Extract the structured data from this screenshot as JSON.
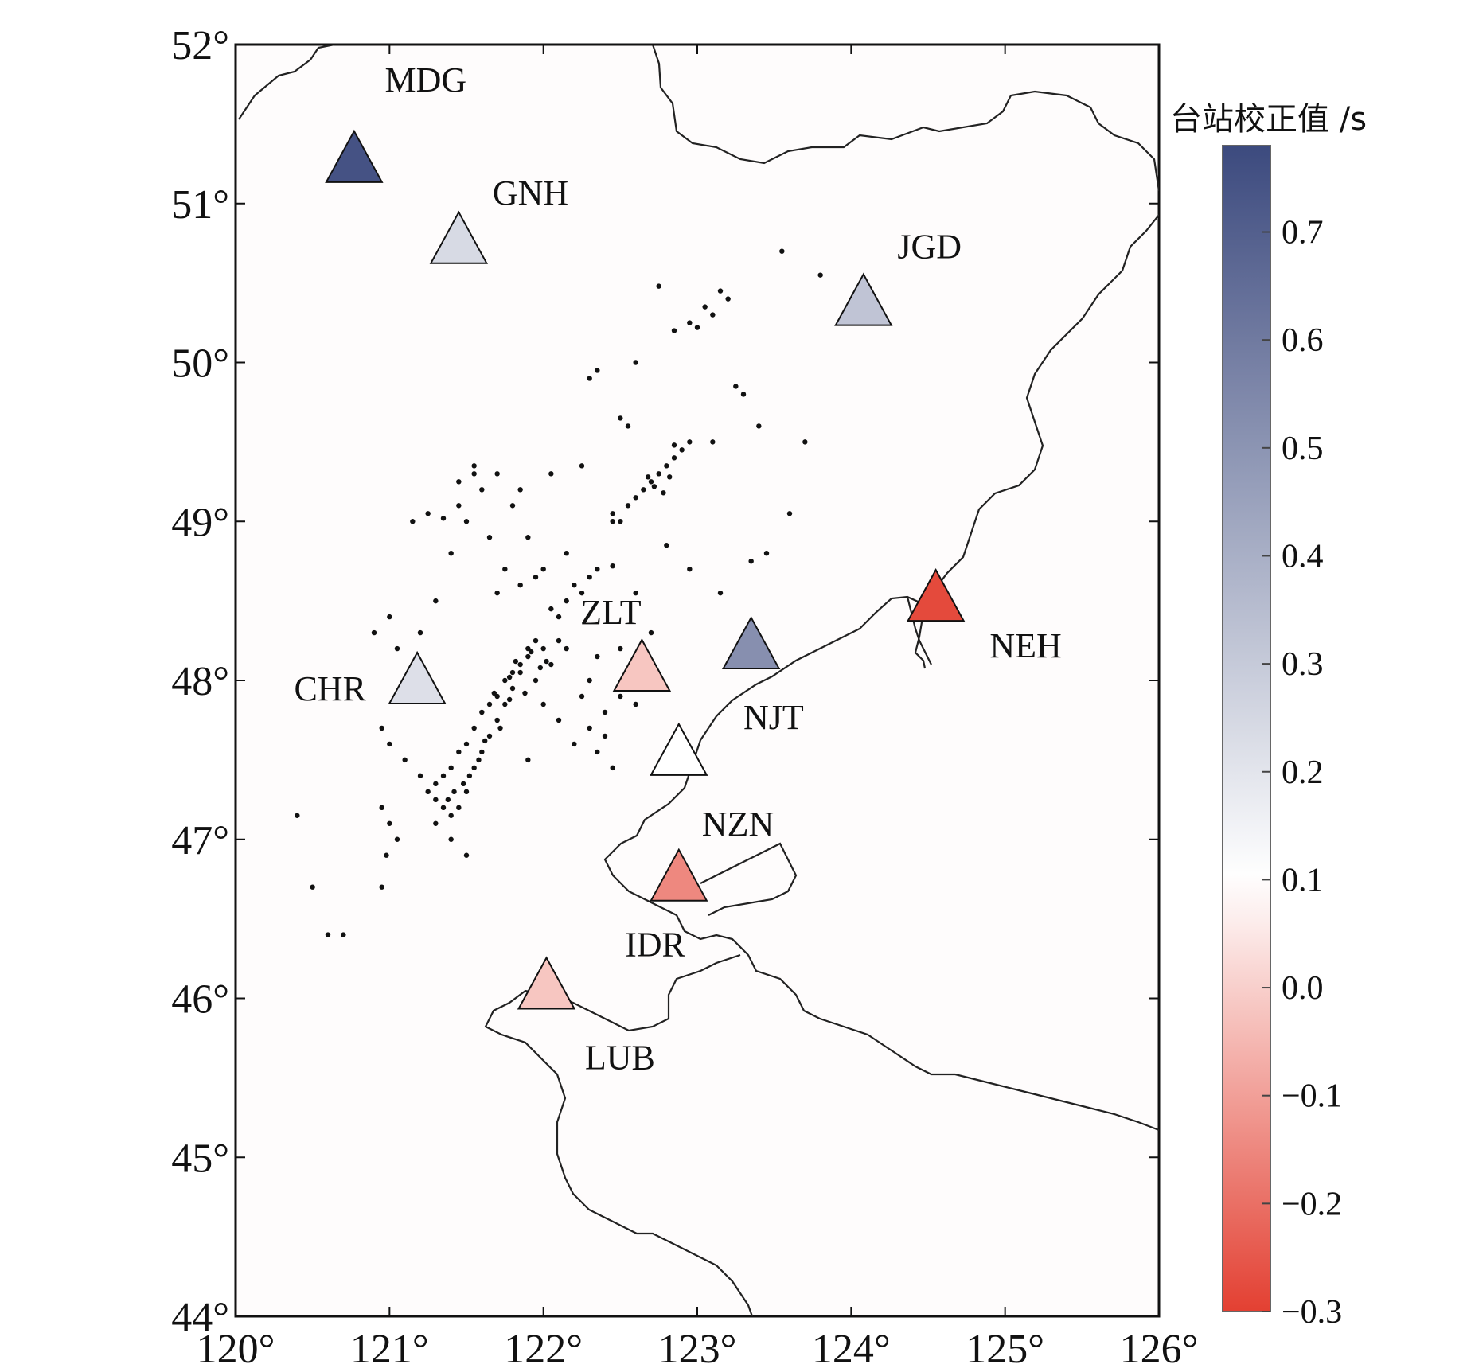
{
  "map": {
    "lon_range": [
      120,
      126
    ],
    "lat_range": [
      44,
      52
    ],
    "lon_ticks": [
      120,
      121,
      122,
      123,
      124,
      125,
      126
    ],
    "lat_ticks": [
      44,
      45,
      46,
      47,
      48,
      49,
      50,
      51,
      52
    ],
    "lon_tick_labels": [
      "120°",
      "121°",
      "122°",
      "123°",
      "124°",
      "125°",
      "126°"
    ],
    "lat_tick_labels": [
      "44°",
      "45°",
      "46°",
      "47°",
      "48°",
      "49°",
      "50°",
      "51°",
      "52°"
    ]
  },
  "stations": [
    {
      "code": "MDG",
      "lon": 120.77,
      "lat": 51.28,
      "correction": 0.75,
      "label_dx": 0.2,
      "label_dy": 0.5
    },
    {
      "code": "GNH",
      "lon": 121.45,
      "lat": 50.77,
      "correction": 0.24,
      "label_dx": 0.22,
      "label_dy": 0.3
    },
    {
      "code": "JGD",
      "lon": 124.08,
      "lat": 50.38,
      "correction": 0.32,
      "label_dx": 0.22,
      "label_dy": 0.35
    },
    {
      "code": "NEH",
      "lon": 124.55,
      "lat": 48.52,
      "correction": -0.28,
      "label_dx": 0.35,
      "label_dy": -0.3
    },
    {
      "code": "ZLT",
      "lon": 122.64,
      "lat": 48.08,
      "correction": -0.02,
      "label_dx": -0.4,
      "label_dy": 0.35
    },
    {
      "code": "NJT",
      "lon": 123.35,
      "lat": 48.22,
      "correction": 0.52,
      "label_dx": -0.05,
      "label_dy": -0.45
    },
    {
      "code": "CHR",
      "lon": 121.18,
      "lat": 48.0,
      "correction": 0.22,
      "label_dx": -0.8,
      "label_dy": -0.05
    },
    {
      "code": "NZN",
      "lon": 122.88,
      "lat": 47.55,
      "correction": 0.1,
      "label_dx": 0.15,
      "label_dy": -0.45
    },
    {
      "code": "IDR",
      "lon": 122.88,
      "lat": 46.76,
      "correction": -0.15,
      "label_dx": -0.35,
      "label_dy": -0.42
    },
    {
      "code": "LUB",
      "lon": 122.02,
      "lat": 46.08,
      "correction": -0.02,
      "label_dx": 0.25,
      "label_dy": -0.45
    }
  ],
  "colorbar": {
    "title": "台站校正值 /s",
    "min": -0.3,
    "max": 0.78,
    "ticks": [
      0.7,
      0.6,
      0.5,
      0.4,
      0.3,
      0.2,
      0.1,
      0.0,
      -0.1,
      -0.2,
      -0.3
    ],
    "tick_labels": [
      "0.7",
      "0.6",
      "0.5",
      "0.4",
      "0.3",
      "0.2",
      "0.1",
      "0.0",
      "−0.1",
      "−0.2",
      "−0.3"
    ],
    "color_low": "#e34032",
    "color_mid": "#ffffff",
    "color_high": "#3c4a7e"
  },
  "earthquakes": [
    [
      121.9,
      48.15
    ],
    [
      121.85,
      48.1
    ],
    [
      121.8,
      48.05
    ],
    [
      121.75,
      48.0
    ],
    [
      121.7,
      47.9
    ],
    [
      121.65,
      47.85
    ],
    [
      121.6,
      47.8
    ],
    [
      121.55,
      47.7
    ],
    [
      121.5,
      47.6
    ],
    [
      121.45,
      47.55
    ],
    [
      121.4,
      47.45
    ],
    [
      121.35,
      47.4
    ],
    [
      121.3,
      47.35
    ],
    [
      121.25,
      47.3
    ],
    [
      121.3,
      47.25
    ],
    [
      121.35,
      47.2
    ],
    [
      121.4,
      47.15
    ],
    [
      121.45,
      47.2
    ],
    [
      121.5,
      47.3
    ],
    [
      121.55,
      47.45
    ],
    [
      121.6,
      47.55
    ],
    [
      121.65,
      47.65
    ],
    [
      121.7,
      47.75
    ],
    [
      121.75,
      47.85
    ],
    [
      121.8,
      47.95
    ],
    [
      121.85,
      48.05
    ],
    [
      121.9,
      48.2
    ],
    [
      121.95,
      48.25
    ],
    [
      122.0,
      48.2
    ],
    [
      122.05,
      48.1
    ],
    [
      121.95,
      48.0
    ],
    [
      121.88,
      47.92
    ],
    [
      121.78,
      47.88
    ],
    [
      121.72,
      47.7
    ],
    [
      121.62,
      47.62
    ],
    [
      121.58,
      47.5
    ],
    [
      121.52,
      47.4
    ],
    [
      121.48,
      47.35
    ],
    [
      121.42,
      47.3
    ],
    [
      121.38,
      47.25
    ],
    [
      122.1,
      48.25
    ],
    [
      122.15,
      48.2
    ],
    [
      121.98,
      48.08
    ],
    [
      122.02,
      48.12
    ],
    [
      121.92,
      48.18
    ],
    [
      121.82,
      48.12
    ],
    [
      121.78,
      48.02
    ],
    [
      121.68,
      47.92
    ],
    [
      122.2,
      48.6
    ],
    [
      122.3,
      48.65
    ],
    [
      122.25,
      48.55
    ],
    [
      122.15,
      48.5
    ],
    [
      122.05,
      48.45
    ],
    [
      122.35,
      48.7
    ],
    [
      122.45,
      48.72
    ],
    [
      122.5,
      49.0
    ],
    [
      122.45,
      49.05
    ],
    [
      122.55,
      49.1
    ],
    [
      122.6,
      49.15
    ],
    [
      122.65,
      49.2
    ],
    [
      122.7,
      49.25
    ],
    [
      122.75,
      49.3
    ],
    [
      122.8,
      49.35
    ],
    [
      122.85,
      49.4
    ],
    [
      122.9,
      49.45
    ],
    [
      122.95,
      49.5
    ],
    [
      122.68,
      49.28
    ],
    [
      122.72,
      49.22
    ],
    [
      122.78,
      49.18
    ],
    [
      122.82,
      49.28
    ],
    [
      122.85,
      50.2
    ],
    [
      122.95,
      50.25
    ],
    [
      123.05,
      50.35
    ],
    [
      123.15,
      50.45
    ],
    [
      123.2,
      50.4
    ],
    [
      123.1,
      50.3
    ],
    [
      123.0,
      50.22
    ],
    [
      122.35,
      49.95
    ],
    [
      122.3,
      49.9
    ],
    [
      122.5,
      49.65
    ],
    [
      122.55,
      49.6
    ],
    [
      122.6,
      50.0
    ],
    [
      121.2,
      48.3
    ],
    [
      121.3,
      48.5
    ],
    [
      121.4,
      48.8
    ],
    [
      121.5,
      49.0
    ],
    [
      121.6,
      49.2
    ],
    [
      121.7,
      49.3
    ],
    [
      121.8,
      49.1
    ],
    [
      121.9,
      48.9
    ],
    [
      122.0,
      48.7
    ],
    [
      122.1,
      48.4
    ],
    [
      121.15,
      49.0
    ],
    [
      121.25,
      49.05
    ],
    [
      121.35,
      49.02
    ],
    [
      121.45,
      49.1
    ],
    [
      121.55,
      49.3
    ],
    [
      121.65,
      48.9
    ],
    [
      121.75,
      48.7
    ],
    [
      121.85,
      48.6
    ],
    [
      120.9,
      48.3
    ],
    [
      121.0,
      48.4
    ],
    [
      121.05,
      48.2
    ],
    [
      120.95,
      47.7
    ],
    [
      121.0,
      47.6
    ],
    [
      121.1,
      47.5
    ],
    [
      121.2,
      47.4
    ],
    [
      121.3,
      47.1
    ],
    [
      121.4,
      47.0
    ],
    [
      121.5,
      46.9
    ],
    [
      120.95,
      47.2
    ],
    [
      121.0,
      47.1
    ],
    [
      121.05,
      47.0
    ],
    [
      120.98,
      46.9
    ],
    [
      120.95,
      46.7
    ],
    [
      120.5,
      46.7
    ],
    [
      120.6,
      46.4
    ],
    [
      120.7,
      46.4
    ],
    [
      120.4,
      47.15
    ],
    [
      122.3,
      47.7
    ],
    [
      122.4,
      47.8
    ],
    [
      122.5,
      47.9
    ],
    [
      122.6,
      47.85
    ],
    [
      122.7,
      47.95
    ],
    [
      122.35,
      47.55
    ],
    [
      122.2,
      47.6
    ],
    [
      122.1,
      47.75
    ],
    [
      122.0,
      47.85
    ],
    [
      121.9,
      47.5
    ],
    [
      123.3,
      49.8
    ],
    [
      123.4,
      49.6
    ],
    [
      123.55,
      50.7
    ],
    [
      123.7,
      49.5
    ],
    [
      123.6,
      49.05
    ],
    [
      123.45,
      48.8
    ],
    [
      123.35,
      48.75
    ],
    [
      123.15,
      48.55
    ],
    [
      122.95,
      48.7
    ],
    [
      122.8,
      48.85
    ],
    [
      122.6,
      48.55
    ],
    [
      122.7,
      48.3
    ],
    [
      122.5,
      48.2
    ],
    [
      122.35,
      48.15
    ],
    [
      122.3,
      48.0
    ],
    [
      122.25,
      47.9
    ],
    [
      122.4,
      47.65
    ],
    [
      122.45,
      47.45
    ],
    [
      121.55,
      49.35
    ],
    [
      121.45,
      49.25
    ],
    [
      121.85,
      49.2
    ],
    [
      122.05,
      49.3
    ],
    [
      122.25,
      49.35
    ],
    [
      122.45,
      49.0
    ],
    [
      122.15,
      48.8
    ],
    [
      121.95,
      48.65
    ],
    [
      121.7,
      48.55
    ],
    [
      123.8,
      50.55
    ],
    [
      123.25,
      49.85
    ],
    [
      122.85,
      49.48
    ],
    [
      123.1,
      49.5
    ],
    [
      122.75,
      50.48
    ]
  ]
}
